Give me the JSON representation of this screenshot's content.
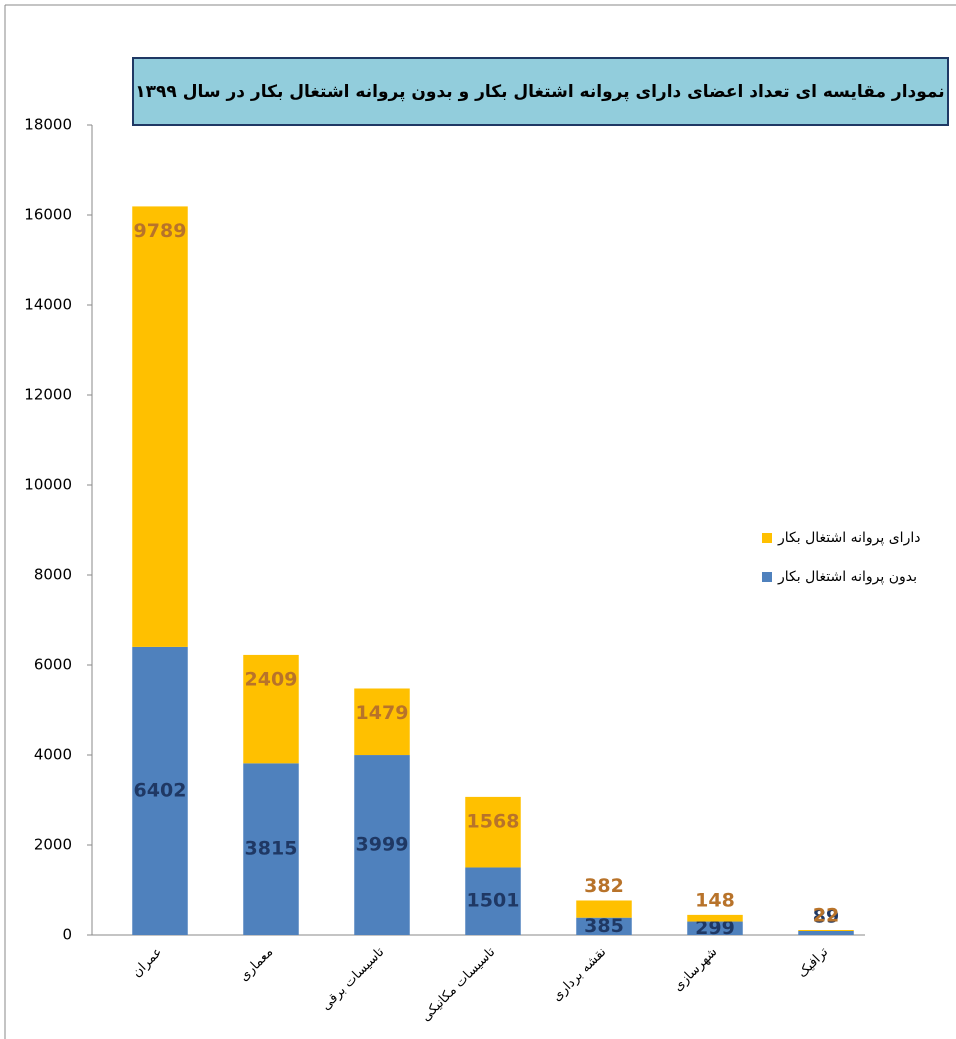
{
  "chart_data": {
    "type": "stacked_bar",
    "title": "نمودار مقایسه ای تعداد اعضای دارای پروانه اشتغال بکار و بدون پروانه اشتغال بکار در سال ۱۳۹۹",
    "categories": [
      "عمران",
      "معماری",
      "تاسیسات برقی",
      "تاسیسات مکانیکی",
      "نقشه برداری",
      "شهرسازی",
      "ترافیک"
    ],
    "series": [
      {
        "name": "بدون پروانه اشتغال بکار",
        "color": "#4f81bd",
        "label_color": "#1f3864",
        "values": [
          6402,
          3815,
          3999,
          1501,
          385,
          299,
          89
        ]
      },
      {
        "name": "دارای پروانه اشتغال بکار",
        "color": "#ffc000",
        "label_color": "#b8732a",
        "values": [
          9789,
          2409,
          1479,
          1568,
          382,
          148,
          22
        ]
      }
    ],
    "ylim": [
      0,
      18000
    ],
    "yticks": [
      0,
      2000,
      4000,
      6000,
      8000,
      10000,
      12000,
      14000,
      16000,
      18000
    ],
    "grid": false,
    "legend": "right"
  }
}
